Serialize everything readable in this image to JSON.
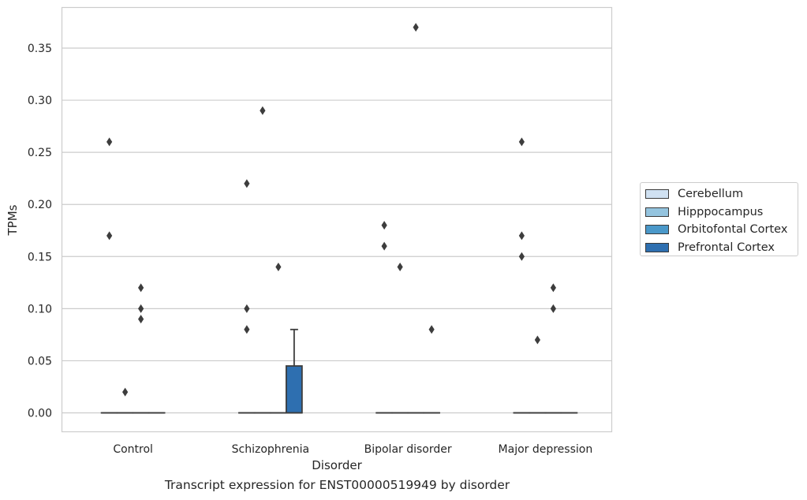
{
  "chart_data": {
    "type": "box",
    "title": "",
    "caption": "Transcript expression for ENST00000519949 by disorder",
    "xlabel": "Disorder",
    "ylabel": "TPMs",
    "ylim": [
      -0.018,
      0.388
    ],
    "yticks": [
      "0.00",
      "0.05",
      "0.10",
      "0.15",
      "0.20",
      "0.25",
      "0.30",
      "0.35"
    ],
    "grid": "horizontal",
    "legend_position": "outside-right",
    "categories": [
      "Control",
      "Schizophrenia",
      "Bipolar disorder",
      "Major depression"
    ],
    "series": [
      {
        "name": "Cerebellum",
        "color": "#d0e1f2",
        "boxes": [
          {
            "q1": 0,
            "median": 0,
            "q3": 0,
            "whislo": 0,
            "whishi": 0,
            "fliers": [
              0.26,
              0.17
            ]
          },
          {
            "q1": 0,
            "median": 0,
            "q3": 0,
            "whislo": 0,
            "whishi": 0,
            "fliers": [
              0.22,
              0.1,
              0.08
            ]
          },
          {
            "q1": 0,
            "median": 0,
            "q3": 0,
            "whislo": 0,
            "whishi": 0,
            "fliers": [
              0.18,
              0.16
            ]
          },
          {
            "q1": 0,
            "median": 0,
            "q3": 0,
            "whislo": 0,
            "whishi": 0,
            "fliers": [
              0.26,
              0.17,
              0.15
            ]
          }
        ]
      },
      {
        "name": "Hipppocampus",
        "color": "#94c4df",
        "boxes": [
          {
            "q1": 0,
            "median": 0,
            "q3": 0,
            "whislo": 0,
            "whishi": 0,
            "fliers": [
              0.02
            ]
          },
          {
            "q1": 0,
            "median": 0,
            "q3": 0,
            "whislo": 0,
            "whishi": 0,
            "fliers": [
              0.29
            ]
          },
          {
            "q1": 0,
            "median": 0,
            "q3": 0,
            "whislo": 0,
            "whishi": 0,
            "fliers": [
              0.14
            ]
          },
          {
            "q1": 0,
            "median": 0,
            "q3": 0,
            "whislo": 0,
            "whishi": 0,
            "fliers": [
              0.07
            ]
          }
        ]
      },
      {
        "name": "Orbitofontal Cortex",
        "color": "#4a98c9",
        "boxes": [
          {
            "q1": 0,
            "median": 0,
            "q3": 0,
            "whislo": 0,
            "whishi": 0,
            "fliers": [
              0.12,
              0.1,
              0.09
            ]
          },
          {
            "q1": 0,
            "median": 0,
            "q3": 0,
            "whislo": 0,
            "whishi": 0,
            "fliers": [
              0.14
            ]
          },
          {
            "q1": 0,
            "median": 0,
            "q3": 0,
            "whislo": 0,
            "whishi": 0,
            "fliers": [
              0.37
            ]
          },
          {
            "q1": 0,
            "median": 0,
            "q3": 0,
            "whislo": 0,
            "whishi": 0,
            "fliers": [
              0.12,
              0.1
            ]
          }
        ]
      },
      {
        "name": "Prefrontal Cortex",
        "color": "#2e6fb0",
        "boxes": [
          {
            "q1": 0,
            "median": 0,
            "q3": 0,
            "whislo": 0,
            "whishi": 0,
            "fliers": []
          },
          {
            "q1": 0,
            "median": 0,
            "q3": 0.045,
            "whislo": 0,
            "whishi": 0.08,
            "fliers": []
          },
          {
            "q1": 0,
            "median": 0,
            "q3": 0,
            "whislo": 0,
            "whishi": 0,
            "fliers": [
              0.08
            ]
          },
          {
            "q1": 0,
            "median": 0,
            "q3": 0,
            "whislo": 0,
            "whishi": 0,
            "fliers": []
          }
        ]
      }
    ]
  }
}
